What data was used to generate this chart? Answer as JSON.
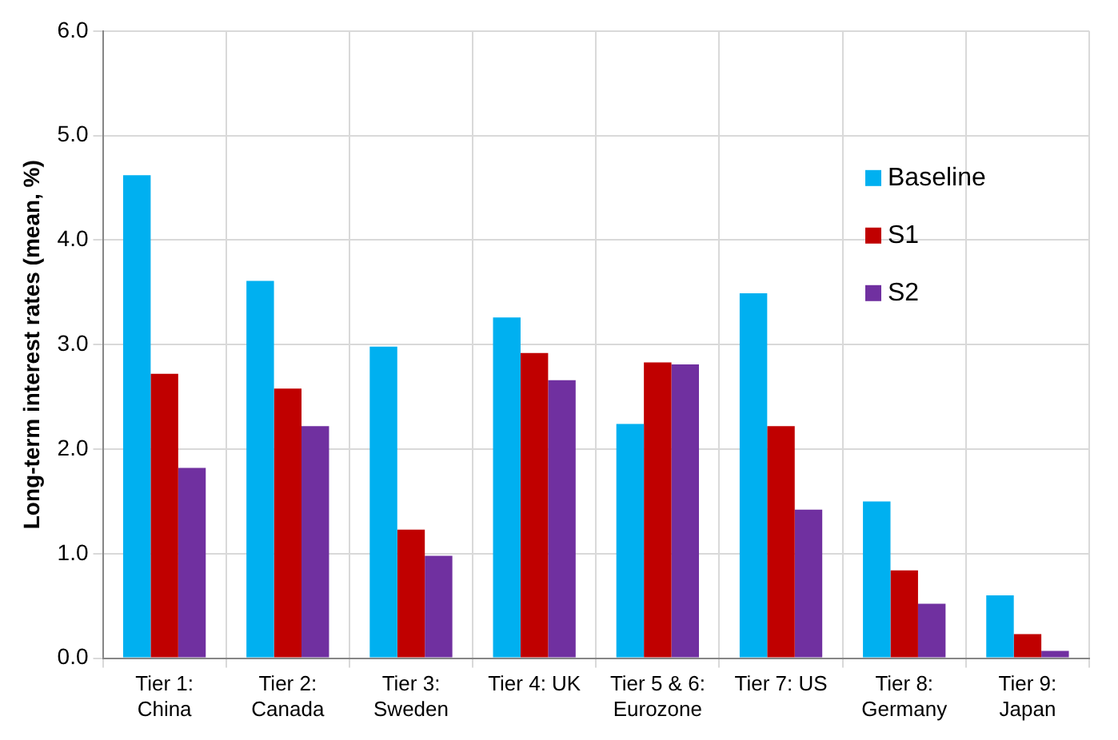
{
  "chart_data": {
    "type": "bar",
    "ylabel": "Long-term interest rates (mean, %)",
    "categories": [
      "Tier 1: China",
      "Tier 2: Canada",
      "Tier 3: Sweden",
      "Tier 4: UK",
      "Tier 5 & 6: Eurozone",
      "Tier 7: US",
      "Tier 8: Germany",
      "Tier 9: Japan"
    ],
    "series": [
      {
        "name": "Baseline",
        "color": "#00b0f0",
        "values": [
          4.62,
          3.61,
          2.98,
          3.26,
          2.24,
          3.49,
          1.5,
          0.6
        ]
      },
      {
        "name": "S1",
        "color": "#c00000",
        "values": [
          2.72,
          2.58,
          1.23,
          2.92,
          2.83,
          2.22,
          0.84,
          0.23
        ]
      },
      {
        "name": "S2",
        "color": "#7030a0",
        "values": [
          1.82,
          2.22,
          0.98,
          2.66,
          2.81,
          1.42,
          0.52,
          0.07
        ]
      }
    ],
    "ylim": [
      0,
      6
    ],
    "yticks": [
      {
        "value": 0,
        "label": "0.0"
      },
      {
        "value": 1,
        "label": "1.0"
      },
      {
        "value": 2,
        "label": "2.0"
      },
      {
        "value": 3,
        "label": "3.0"
      },
      {
        "value": 4,
        "label": "4.0"
      },
      {
        "value": 5,
        "label": "5.0"
      },
      {
        "value": 6,
        "label": "6.0"
      }
    ],
    "grid": true,
    "legend": "right"
  }
}
